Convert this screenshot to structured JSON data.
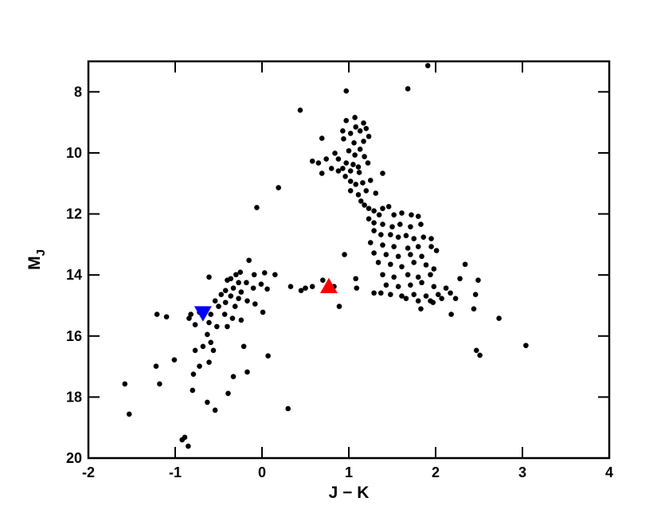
{
  "chart_data": {
    "type": "scatter",
    "xlabel": "J − K",
    "ylabel": "M",
    "ylabel_subscript": "J",
    "xlim": [
      -2,
      4
    ],
    "xticks": [
      -2,
      -1,
      0,
      1,
      2,
      3,
      4
    ],
    "ylim": [
      20,
      7
    ],
    "yticks": [
      8,
      10,
      12,
      14,
      16,
      18,
      20
    ],
    "series": [
      {
        "color": "#000000",
        "marker": "circle",
        "x": [
          0.97,
          1.68,
          1.91,
          0.44,
          1.07,
          0.97,
          1.17,
          1.08,
          1.2,
          0.93,
          1.02,
          1.13,
          1.23,
          0.94,
          1.06,
          1.17,
          0.69,
          0.84,
          1.0,
          1.13,
          1.07,
          1.18,
          0.74,
          0.88,
          0.97,
          1.05,
          1.11,
          1.22,
          0.58,
          0.65,
          0.69,
          0.8,
          0.93,
          1.02,
          1.12,
          1.39,
          0.88,
          0.96,
          1.02,
          1.08,
          1.16,
          1.25,
          1.02,
          1.11,
          1.2,
          1.31,
          1.14,
          1.18,
          1.23,
          1.29,
          1.39,
          1.46,
          1.35,
          1.52,
          1.61,
          1.72,
          1.8,
          1.23,
          1.29,
          1.39,
          1.5,
          1.59,
          1.71,
          1.83,
          1.29,
          1.37,
          1.48,
          1.57,
          1.66,
          1.75,
          1.86,
          1.95,
          1.25,
          1.39,
          1.52,
          1.68,
          1.8,
          1.95,
          2.01,
          1.29,
          1.43,
          1.57,
          1.71,
          1.84,
          1.34,
          1.48,
          1.61,
          1.75,
          1.89,
          1.98,
          1.39,
          1.52,
          1.68,
          1.8,
          1.94,
          2.34,
          1.43,
          1.57,
          1.71,
          1.84,
          1.98,
          2.12,
          2.28,
          2.49,
          2.46,
          1.37,
          1.48,
          1.61,
          1.75,
          1.89,
          2.03,
          2.17,
          1.29,
          1.66,
          1.8,
          1.94,
          2.07,
          2.23,
          1.83,
          1.97,
          2.18,
          2.44,
          2.73,
          2.47,
          2.51,
          3.04,
          0.95,
          0.7,
          0.58,
          0.5,
          0.83,
          1.08,
          1.09,
          0.89,
          0.45,
          0.33,
          0.3,
          0.06,
          0.19,
          -0.06,
          -0.15,
          -0.25,
          -0.3,
          -0.36,
          -0.4,
          -0.27,
          -0.18,
          -0.09,
          0.03,
          0.15,
          -0.01,
          -0.1,
          -0.24,
          -0.33,
          -0.42,
          -0.47,
          -0.36,
          -0.27,
          -0.17,
          -0.08,
          0.01,
          -0.31,
          -0.42,
          -0.5,
          -0.54,
          -0.59,
          -0.43,
          -0.34,
          -0.24,
          -0.61,
          -0.52,
          -0.4,
          -0.72,
          -0.82,
          -0.77,
          -0.63,
          -0.59,
          -0.68,
          -0.56,
          -0.77,
          -0.61,
          -0.72,
          -0.79,
          -0.21,
          0.07,
          -0.17,
          -0.33,
          -0.8,
          -0.39,
          -0.63,
          -0.54,
          -1.21,
          -1.1,
          -0.84,
          -1.22,
          -1.01,
          -1.18,
          -1.58,
          -1.53,
          -0.89,
          -0.92,
          -0.85,
          -0.61
        ],
        "y": [
          7.97,
          7.9,
          7.14,
          8.6,
          8.84,
          8.94,
          9.02,
          9.15,
          9.2,
          9.28,
          9.36,
          9.28,
          9.46,
          9.54,
          9.67,
          9.62,
          9.52,
          10.01,
          9.93,
          9.88,
          10.07,
          10.12,
          10.2,
          10.2,
          10.33,
          10.38,
          10.46,
          10.33,
          10.27,
          10.33,
          10.67,
          10.51,
          10.51,
          10.59,
          10.64,
          10.67,
          10.59,
          10.77,
          10.93,
          11.03,
          10.98,
          10.9,
          11.24,
          11.37,
          11.24,
          11.32,
          11.58,
          11.71,
          11.82,
          11.9,
          11.82,
          11.76,
          12.03,
          12.03,
          11.97,
          12.03,
          12.08,
          12.16,
          12.29,
          12.34,
          12.42,
          12.34,
          12.42,
          12.34,
          12.55,
          12.68,
          12.68,
          12.76,
          12.71,
          12.81,
          12.76,
          12.81,
          12.94,
          13.02,
          13.07,
          13.12,
          13.07,
          13.07,
          13.2,
          13.28,
          13.33,
          13.39,
          13.33,
          13.39,
          13.59,
          13.65,
          13.73,
          13.59,
          13.67,
          13.8,
          13.99,
          14.07,
          13.99,
          14.07,
          13.99,
          13.65,
          14.33,
          14.38,
          14.33,
          14.25,
          14.38,
          14.43,
          14.12,
          14.17,
          14.64,
          14.59,
          14.64,
          14.69,
          14.64,
          14.69,
          14.64,
          14.59,
          14.59,
          14.77,
          14.85,
          14.85,
          14.77,
          14.77,
          15.11,
          14.9,
          15.29,
          15.11,
          15.42,
          16.47,
          16.63,
          16.31,
          13.33,
          14.17,
          14.38,
          14.43,
          14.38,
          14.12,
          14.43,
          15.03,
          14.51,
          14.38,
          18.38,
          14.46,
          11.14,
          11.79,
          13.52,
          13.91,
          13.99,
          14.12,
          14.17,
          14.25,
          14.25,
          13.99,
          13.93,
          13.99,
          14.3,
          14.43,
          14.56,
          14.43,
          14.51,
          14.64,
          14.69,
          14.77,
          14.85,
          14.95,
          15.22,
          15.03,
          14.9,
          15.03,
          14.85,
          15.29,
          15.29,
          15.42,
          15.48,
          15.56,
          15.69,
          15.69,
          15.22,
          15.29,
          15.63,
          15.95,
          16.21,
          16.34,
          16.47,
          16.47,
          16.86,
          16.99,
          17.25,
          16.34,
          16.65,
          17.18,
          17.33,
          17.78,
          17.88,
          18.17,
          18.43,
          15.29,
          15.37,
          15.42,
          16.99,
          16.78,
          17.57,
          17.57,
          18.56,
          19.32,
          19.4,
          19.61,
          14.07
        ]
      },
      {
        "color": "#ff0000",
        "marker": "triangle-up",
        "x": [
          0.77
        ],
        "y": [
          14.38
        ]
      },
      {
        "color": "#0000ff",
        "marker": "triangle-down",
        "x": [
          -0.68
        ],
        "y": [
          15.24
        ]
      }
    ]
  }
}
